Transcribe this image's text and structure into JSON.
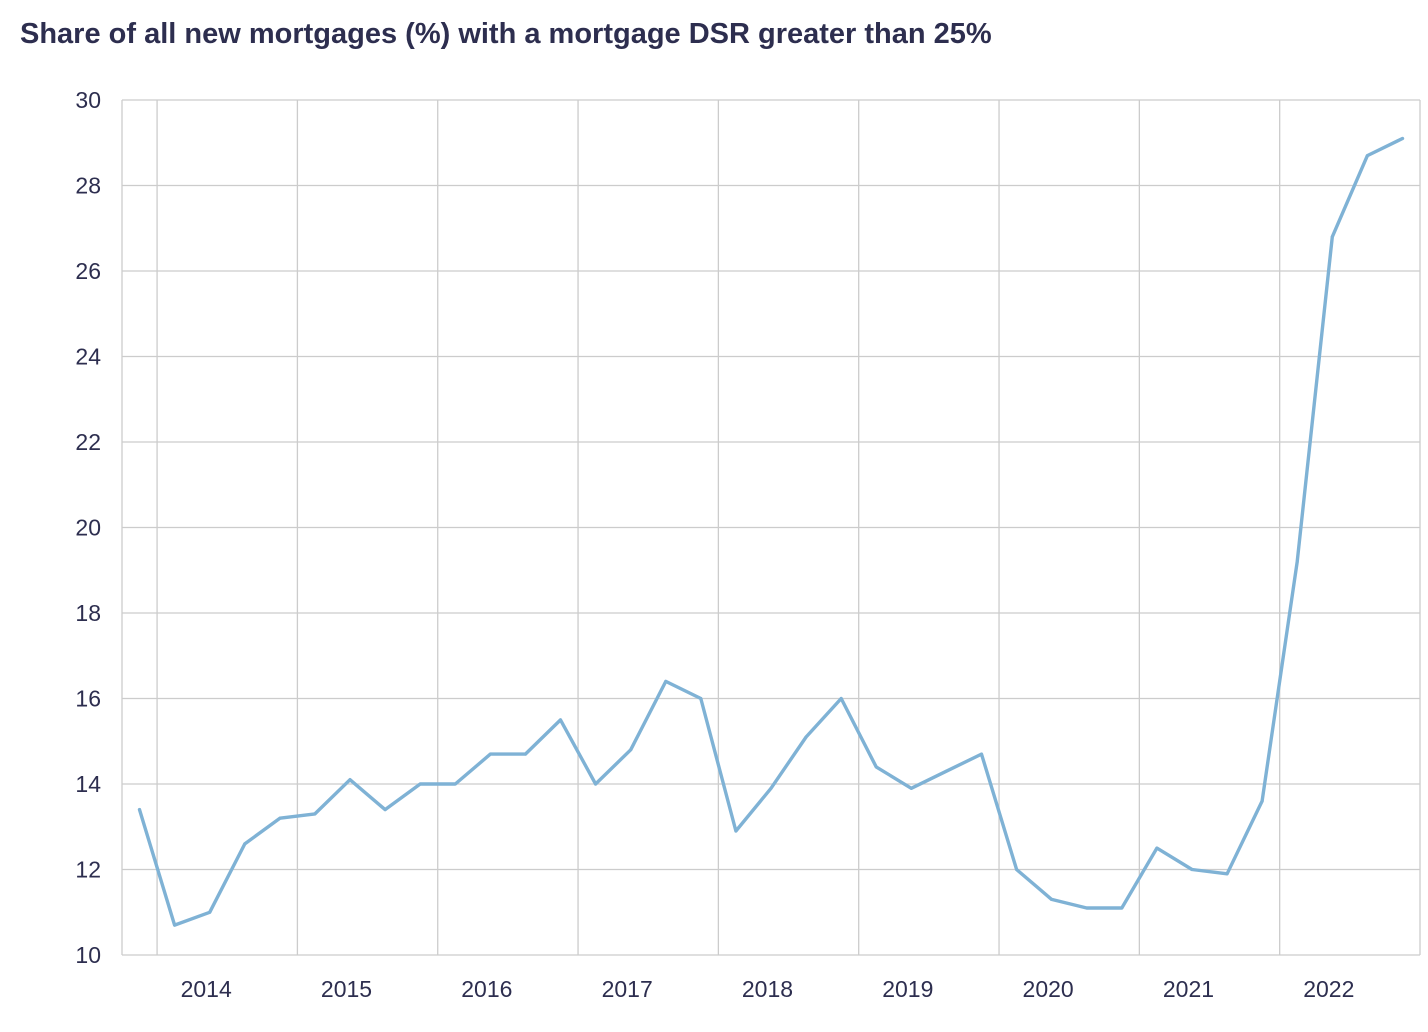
{
  "chart_data": {
    "type": "line",
    "title": "Share of all new mortgages (%) with a mortgage DSR greater than 25%",
    "xlabel": "",
    "ylabel": "",
    "ylim": [
      10,
      30
    ],
    "yticks": [
      10,
      12,
      14,
      16,
      18,
      20,
      22,
      24,
      26,
      28,
      30
    ],
    "xticks": [
      "2014",
      "2015",
      "2016",
      "2017",
      "2018",
      "2019",
      "2020",
      "2021",
      "2022"
    ],
    "xlim": [
      2013.75,
      2023.0
    ],
    "grid": true,
    "line_color": "#7fb2d5",
    "grid_color": "#cccccc",
    "series": [
      {
        "x": [
          2013.875,
          2014.125,
          2014.375,
          2014.625,
          2014.875,
          2015.125,
          2015.375,
          2015.625,
          2015.875,
          2016.125,
          2016.375,
          2016.625,
          2016.875,
          2017.125,
          2017.375,
          2017.625,
          2017.875,
          2018.125,
          2018.375,
          2018.625,
          2018.875,
          2019.125,
          2019.375,
          2019.625,
          2019.875,
          2020.125,
          2020.375,
          2020.625,
          2020.875,
          2021.125,
          2021.375,
          2021.625,
          2021.875,
          2022.125,
          2022.375,
          2022.625,
          2022.875
        ],
        "values": [
          13.4,
          10.7,
          11.0,
          12.6,
          13.2,
          13.3,
          14.1,
          13.4,
          14.0,
          14.0,
          14.7,
          14.7,
          15.5,
          14.0,
          14.8,
          16.4,
          16.0,
          12.9,
          13.9,
          15.1,
          16.0,
          14.4,
          13.9,
          14.3,
          14.7,
          12.0,
          11.3,
          11.1,
          11.1,
          12.5,
          12.0,
          11.9,
          13.6,
          19.2,
          26.8,
          28.7,
          29.1
        ]
      }
    ]
  }
}
